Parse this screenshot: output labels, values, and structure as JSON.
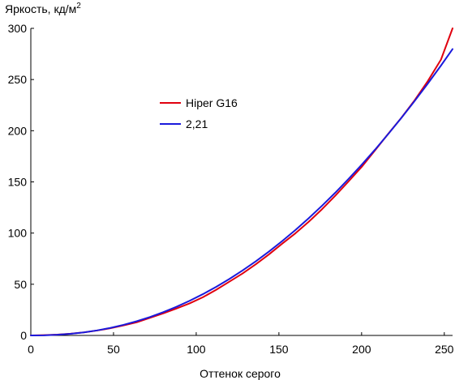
{
  "chart_data": {
    "type": "line",
    "xlabel": "Оттенок серого",
    "ylabel_main": "Яркость, кд/м",
    "ylabel_sup": "2",
    "xlim": [
      0,
      255
    ],
    "ylim": [
      0,
      300
    ],
    "x_ticks": [
      0,
      50,
      100,
      150,
      200,
      250
    ],
    "y_ticks": [
      0,
      50,
      100,
      150,
      200,
      250,
      300
    ],
    "x_tick_labels": [
      "0",
      "50",
      "100",
      "150",
      "200",
      "250"
    ],
    "y_tick_labels": [
      "0",
      "50",
      "100",
      "150",
      "200",
      "250",
      "300"
    ],
    "grid": false,
    "legend_position": "upper-left-center",
    "series": [
      {
        "name": "Hiper G16",
        "color": "#e0000f",
        "x": [
          0,
          8,
          16,
          24,
          32,
          40,
          48,
          56,
          64,
          72,
          80,
          88,
          96,
          104,
          112,
          120,
          128,
          136,
          144,
          152,
          160,
          168,
          176,
          184,
          192,
          200,
          208,
          216,
          224,
          232,
          240,
          248,
          255
        ],
        "y": [
          0,
          0.3,
          0.8,
          1.7,
          3.0,
          4.8,
          7.0,
          9.8,
          12.8,
          17.2,
          21.5,
          26.3,
          31.3,
          37.3,
          44.5,
          52.5,
          60.5,
          69.5,
          79.2,
          89.7,
          99.8,
          111.0,
          123.2,
          136.4,
          150.3,
          164.6,
          180.6,
          196.8,
          212.5,
          229.6,
          248.4,
          269.5,
          300.0
        ]
      },
      {
        "name": "2,21",
        "color": "#1a1adc",
        "x": [
          0,
          8,
          16,
          24,
          32,
          40,
          48,
          56,
          64,
          72,
          80,
          88,
          96,
          104,
          112,
          120,
          128,
          136,
          144,
          152,
          160,
          168,
          176,
          184,
          192,
          200,
          208,
          216,
          224,
          232,
          240,
          248,
          255
        ],
        "y": [
          0,
          0.14,
          0.65,
          1.57,
          2.98,
          4.89,
          7.33,
          10.32,
          13.87,
          17.97,
          22.67,
          27.95,
          33.83,
          40.31,
          47.41,
          55.12,
          63.47,
          72.42,
          81.99,
          92.2,
          103.0,
          114.5,
          126.6,
          139.3,
          152.7,
          166.7,
          181.3,
          196.6,
          212.4,
          228.9,
          246.0,
          263.7,
          279.8
        ]
      }
    ]
  }
}
